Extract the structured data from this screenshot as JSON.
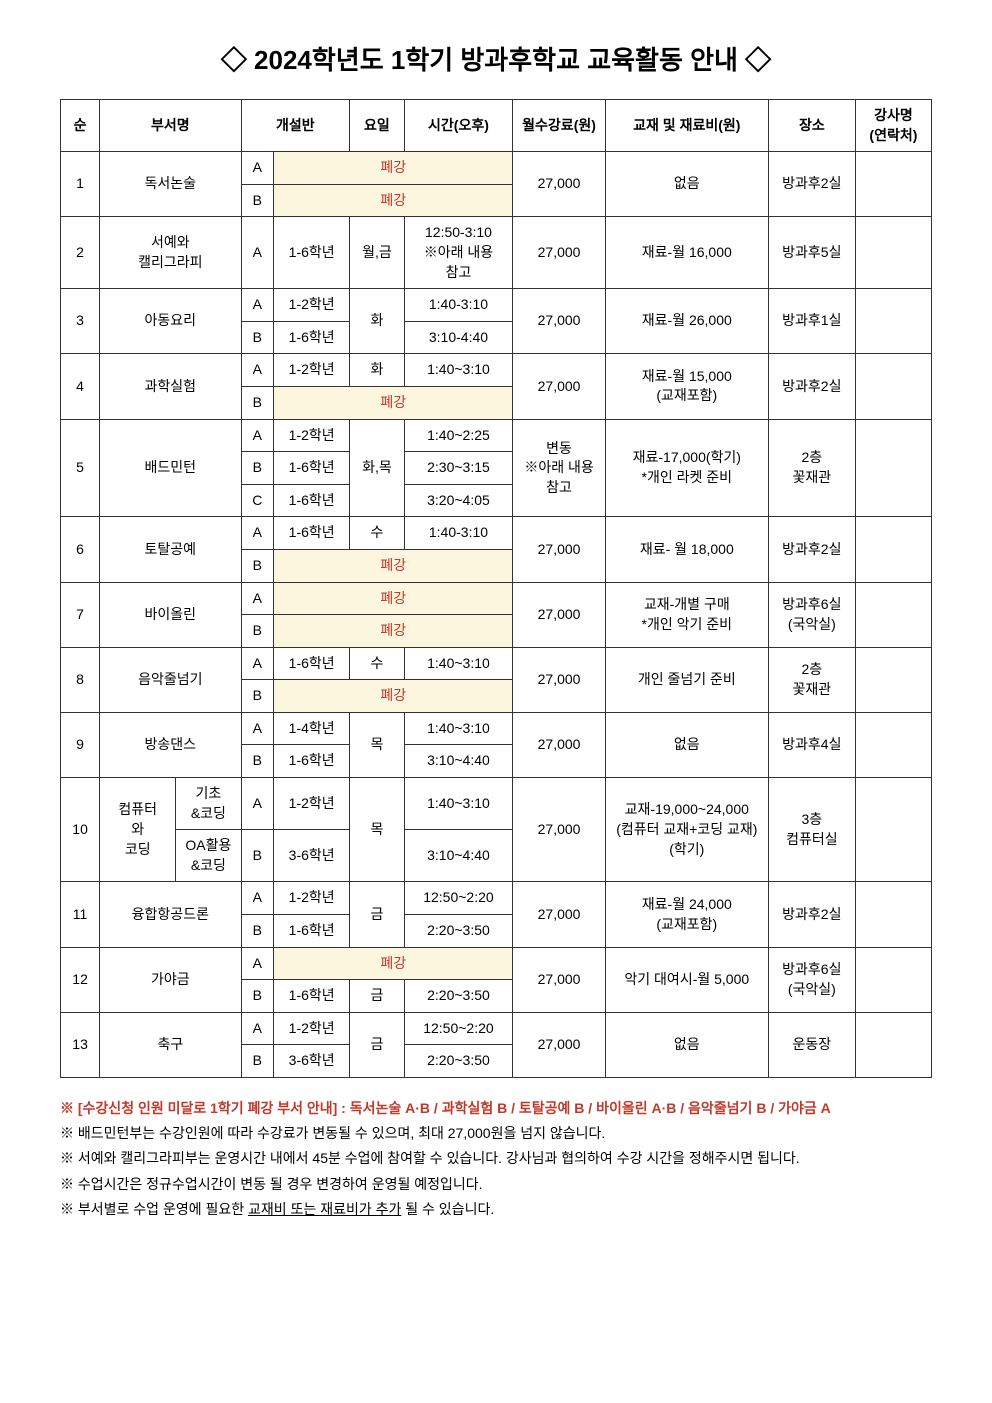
{
  "title": "◇ 2024학년도 1학기 방과후학교 교육활동 안내 ◇",
  "headers": {
    "num": "순",
    "dept": "부서명",
    "section": "개설반",
    "day": "요일",
    "time": "시간(오후)",
    "fee": "월수강료(원)",
    "material": "교재 및 재료비(원)",
    "location": "장소",
    "instructor": "강사명\n(연락처)"
  },
  "closed_label": "폐강",
  "rows": {
    "r1": {
      "num": "1",
      "dept": "독서논술",
      "secA": "A",
      "secB": "B",
      "fee": "27,000",
      "material": "없음",
      "loc": "방과후2실"
    },
    "r2": {
      "num": "2",
      "dept": "서예와\n캘리그라피",
      "secA": "A",
      "grade": "1-6학년",
      "day": "월,금",
      "time": "12:50-3:10\n※아래 내용\n참고",
      "fee": "27,000",
      "material": "재료-월 16,000",
      "loc": "방과후5실"
    },
    "r3": {
      "num": "3",
      "dept": "아동요리",
      "secA": "A",
      "secB": "B",
      "gradeA": "1-2학년",
      "gradeB": "1-6학년",
      "day": "화",
      "timeA": "1:40-3:10",
      "timeB": "3:10-4:40",
      "fee": "27,000",
      "material": "재료-월 26,000",
      "loc": "방과후1실"
    },
    "r4": {
      "num": "4",
      "dept": "과학실험",
      "secA": "A",
      "secB": "B",
      "gradeA": "1-2학년",
      "dayA": "화",
      "timeA": "1:40~3:10",
      "fee": "27,000",
      "material": "재료-월 15,000\n(교재포함)",
      "loc": "방과후2실"
    },
    "r5": {
      "num": "5",
      "dept": "배드민턴",
      "secA": "A",
      "secB": "B",
      "secC": "C",
      "gradeA": "1-2학년",
      "gradeB": "1-6학년",
      "gradeC": "1-6학년",
      "day": "화,목",
      "timeA": "1:40~2:25",
      "timeB": "2:30~3:15",
      "timeC": "3:20~4:05",
      "fee": "변동\n※아래 내용\n참고",
      "material": "재료-17,000(학기)\n*개인 라켓 준비",
      "loc": "2층\n꽃재관"
    },
    "r6": {
      "num": "6",
      "dept": "토탈공예",
      "secA": "A",
      "secB": "B",
      "gradeA": "1-6학년",
      "dayA": "수",
      "timeA": "1:40-3:10",
      "fee": "27,000",
      "material": "재료- 월 18,000",
      "loc": "방과후2실"
    },
    "r7": {
      "num": "7",
      "dept": "바이올린",
      "secA": "A",
      "secB": "B",
      "fee": "27,000",
      "material": "교재-개별 구매\n*개인 악기 준비",
      "loc": "방과후6실\n(국악실)"
    },
    "r8": {
      "num": "8",
      "dept": "음악줄넘기",
      "secA": "A",
      "secB": "B",
      "gradeA": "1-6학년",
      "dayA": "수",
      "timeA": "1:40~3:10",
      "fee": "27,000",
      "material": "개인 줄넘기 준비",
      "loc": "2층\n꽃재관"
    },
    "r9": {
      "num": "9",
      "dept": "방송댄스",
      "secA": "A",
      "secB": "B",
      "gradeA": "1-4학년",
      "gradeB": "1-6학년",
      "day": "목",
      "timeA": "1:40~3:10",
      "timeB": "3:10~4:40",
      "fee": "27,000",
      "material": "없음",
      "loc": "방과후4실"
    },
    "r10": {
      "num": "10",
      "dept1": "컴퓨터\n와\n코딩",
      "sub1": "기초\n&코딩",
      "sub2": "OA활용\n&코딩",
      "secA": "A",
      "secB": "B",
      "gradeA": "1-2학년",
      "gradeB": "3-6학년",
      "day": "목",
      "timeA": "1:40~3:10",
      "timeB": "3:10~4:40",
      "fee": "27,000",
      "material": "교재-19,000~24,000\n(컴퓨터 교재+코딩 교재)\n(학기)",
      "loc": "3층\n컴퓨터실"
    },
    "r11": {
      "num": "11",
      "dept": "융합항공드론",
      "secA": "A",
      "secB": "B",
      "gradeA": "1-2학년",
      "gradeB": "1-6학년",
      "day": "금",
      "timeA": "12:50~2:20",
      "timeB": "2:20~3:50",
      "fee": "27,000",
      "material": "재료-월 24,000\n(교재포함)",
      "loc": "방과후2실"
    },
    "r12": {
      "num": "12",
      "dept": "가야금",
      "secA": "A",
      "secB": "B",
      "gradeB": "1-6학년",
      "dayB": "금",
      "timeB": "2:20~3:50",
      "fee": "27,000",
      "material": "악기 대여시-월 5,000",
      "loc": "방과후6실\n(국악실)"
    },
    "r13": {
      "num": "13",
      "dept": "축구",
      "secA": "A",
      "secB": "B",
      "gradeA": "1-2학년",
      "gradeB": "3-6학년",
      "day": "금",
      "timeA": "12:50~2:20",
      "timeB": "2:20~3:50",
      "fee": "27,000",
      "material": "없음",
      "loc": "운동장"
    }
  },
  "notes": {
    "n1": "※ [수강신청 인원 미달로 1학기 폐강 부서 안내] : 독서논술 A·B / 과학실험 B / 토탈공예 B / 바이올린 A·B / 음악줄넘기 B / 가야금 A",
    "n2": "※ 배드민턴부는 수강인원에 따라 수강료가 변동될 수 있으며, 최대 27,000원을 넘지 않습니다.",
    "n3": "※ 서예와 캘리그라피부는 운영시간 내에서 45분 수업에 참여할 수 있습니다. 강사님과 협의하여 수강 시간을 정해주시면 됩니다.",
    "n4": "※ 수업시간은 정규수업시간이 변동 될 경우 변경하여 운영될 예정입니다.",
    "n5a": "※ 부서별로 수업 운영에 필요한 ",
    "n5u": "교재비 또는 재료비가 추가",
    "n5b": " 될 수 있습니다."
  }
}
